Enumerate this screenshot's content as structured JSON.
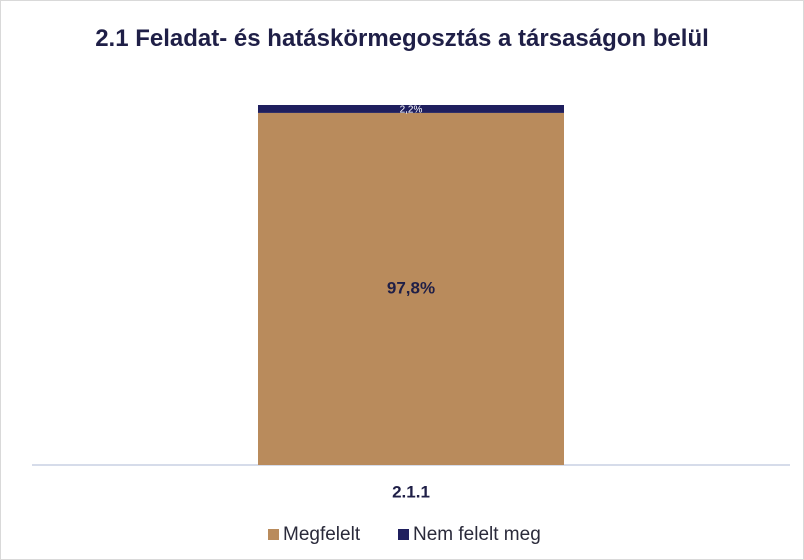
{
  "chart_data": {
    "type": "bar",
    "stacked": true,
    "title": "2.1 Feladat- és hatáskörmegosztás a társaságon belül",
    "categories": [
      "2.1.1"
    ],
    "series": [
      {
        "name": "Megfelelt",
        "color": "#b98b5c",
        "values": [
          97.8
        ],
        "value_labels": [
          "97,8%"
        ]
      },
      {
        "name": "Nem felelt meg",
        "color": "#1f1f5e",
        "values": [
          2.2
        ],
        "value_labels": [
          "2,2%"
        ]
      }
    ],
    "legend": "bottom"
  }
}
